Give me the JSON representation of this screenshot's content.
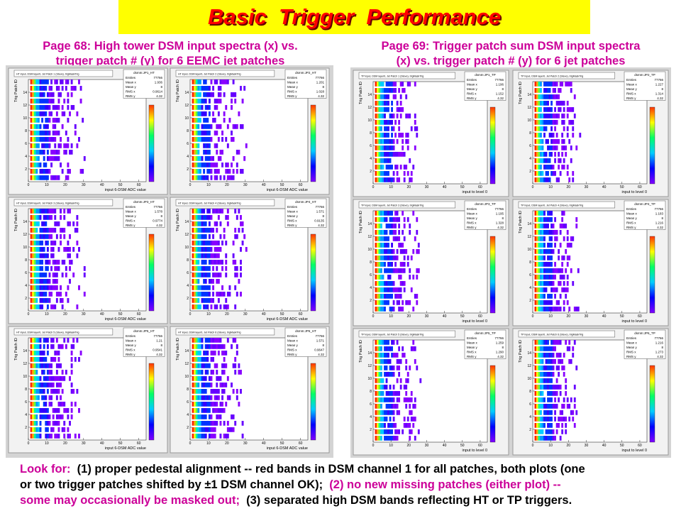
{
  "title": "Basic  Trigger  Performance",
  "left": {
    "caption": [
      "Page 68: High tower DSM input spectra (x) vs.",
      "trigger patch # (y) for 6 EEMC jet patches"
    ],
    "x_label": "input 6-DSM ADC value",
    "y_label": "Trig Patch ID",
    "x_ticks": [
      "0",
      "10",
      "20",
      "30",
      "40",
      "50",
      "60"
    ],
    "y_ticks": [
      "2",
      "4",
      "6",
      "8",
      "10",
      "12",
      "14"
    ],
    "panels": [
      {
        "title": "HT input, DSM layer0, Jet Patch 1 (Steve), trigMaskTrig",
        "stats_name": "dsmIn:JP1_HT",
        "stats": [
          [
            "Entries",
            "77766"
          ],
          [
            "Mean x",
            "1.936"
          ],
          [
            "Mean y",
            "8"
          ],
          [
            "RMS x",
            "0.9614"
          ],
          [
            "RMS y",
            "4.32"
          ]
        ]
      },
      {
        "title": "HT input, DSM layer0, Jet Patch 2 (Steve), trigMaskTrig",
        "stats_name": "dsmIn:JP2_HT",
        "stats": [
          [
            "Entries",
            "77766"
          ],
          [
            "Mean x",
            "1.201"
          ],
          [
            "Mean y",
            "8"
          ],
          [
            "RMS x",
            "1.028"
          ],
          [
            "RMS y",
            "4.32"
          ]
        ]
      },
      {
        "title": "HT input, DSM layer0, Jet Patch 3 (Steve), trigMaskTrig",
        "stats_name": "dsmIn:JP3_HT",
        "stats": [
          [
            "Entries",
            "77766"
          ],
          [
            "Mean x",
            "1.578"
          ],
          [
            "Mean y",
            "8"
          ],
          [
            "RMS x",
            "0.9774"
          ],
          [
            "RMS y",
            "4.32"
          ]
        ]
      },
      {
        "title": "HT input, DSM layer0, Jet Patch 4 (Steve), trigMaskTrig",
        "stats_name": "dsmIn:JP4_HT",
        "stats": [
          [
            "Entries",
            "77766"
          ],
          [
            "Mean x",
            "1.571"
          ],
          [
            "Mean y",
            "8"
          ],
          [
            "RMS x",
            "0.9135"
          ],
          [
            "RMS y",
            "4.32"
          ]
        ]
      },
      {
        "title": "HT input, DSM layer0, Jet Patch 5 (Steve), trigMaskTrig",
        "stats_name": "dsmIn:JP5_HT",
        "stats": [
          [
            "Entries",
            "77766"
          ],
          [
            "Mean x",
            "1.21"
          ],
          [
            "Mean y",
            "8"
          ],
          [
            "RMS x",
            "0.9541"
          ],
          [
            "RMS y",
            "4.32"
          ]
        ]
      },
      {
        "title": "HT input, DSM layer0, Jet Patch 6 (Steve), trigMaskTrig",
        "stats_name": "dsmIn:JP6_HT",
        "stats": [
          [
            "Entries",
            "77766"
          ],
          [
            "Mean x",
            "1.571"
          ],
          [
            "Mean y",
            "8"
          ],
          [
            "RMS x",
            "0.9647"
          ],
          [
            "RMS y",
            "4.32"
          ]
        ]
      }
    ]
  },
  "right": {
    "caption": [
      "Page 69: Trigger patch sum DSM input spectra",
      "(x) vs. trigger patch # (y) for 6 jet patches"
    ],
    "x_label": "input to level 0",
    "y_label": "Trig Patch ID",
    "x_ticks": [
      "0",
      "10",
      "20",
      "30",
      "40",
      "50",
      "60"
    ],
    "y_ticks": [
      "2",
      "4",
      "6",
      "8",
      "10",
      "12",
      "14"
    ],
    "panels": [
      {
        "title": "TP input, DSM layer0, Jet Patch 1 (Steve), trigMaskTrig",
        "stats_name": "dsmIn:JP1_TP",
        "stats": [
          [
            "Entries",
            "77766"
          ],
          [
            "Mean x",
            "1.196"
          ],
          [
            "Mean y",
            "8"
          ],
          [
            "RMS x",
            "1.152"
          ],
          [
            "RMS y",
            "4.32"
          ]
        ]
      },
      {
        "title": "TP input, DSM layer0, Jet Patch 2 (Steve), trigMaskTrig",
        "stats_name": "dsmIn:JP2_TP",
        "stats": [
          [
            "Entries",
            "77766"
          ],
          [
            "Mean x",
            "1.227"
          ],
          [
            "Mean y",
            "8"
          ],
          [
            "RMS x",
            "1.314"
          ],
          [
            "RMS y",
            "4.32"
          ]
        ]
      },
      {
        "title": "TP input, DSM layer0, Jet Patch 3 (Steve), trigMaskTrig",
        "stats_name": "dsmIn:JP3_TP",
        "stats": [
          [
            "Entries",
            "77766"
          ],
          [
            "Mean x",
            "1.195"
          ],
          [
            "Mean y",
            "8"
          ],
          [
            "RMS x",
            "1.328"
          ],
          [
            "RMS y",
            "4.32"
          ]
        ]
      },
      {
        "title": "TP input, DSM layer0, Jet Patch 4 (Steve), trigMaskTrig",
        "stats_name": "dsmIn:JP4_TP",
        "stats": [
          [
            "Entries",
            "77766"
          ],
          [
            "Mean x",
            "1.183"
          ],
          [
            "Mean y",
            "8"
          ],
          [
            "RMS x",
            "1.216"
          ],
          [
            "RMS y",
            "4.32"
          ]
        ]
      },
      {
        "title": "TP input, DSM layer0, Jet Patch 5 (Steve), trigMaskTrig",
        "stats_name": "dsmIn:JP5_TP",
        "stats": [
          [
            "Entries",
            "77766"
          ],
          [
            "Mean x",
            "1.259"
          ],
          [
            "Mean y",
            "8"
          ],
          [
            "RMS x",
            "1.290"
          ],
          [
            "RMS y",
            "4.32"
          ]
        ]
      },
      {
        "title": "TP input, DSM layer0, Jet Patch 6 (Steve), trigMaskTrig",
        "stats_name": "dsmIn:JP6_TP",
        "stats": [
          [
            "Entries",
            "77766"
          ],
          [
            "Mean x",
            "1.216"
          ],
          [
            "Mean y",
            "8"
          ],
          [
            "RMS x",
            "1.273"
          ],
          [
            "RMS y",
            "4.32"
          ]
        ]
      }
    ]
  },
  "footer": [
    [
      "Look for:",
      "  (1) proper pedestal alignment -- red bands in DSM channel 1 for all patches, both plots (one"
    ],
    [
      "or two trigger patches shifted by ±1 DSM channel OK);",
      "  (2) no new missing patches (either plot) --"
    ],
    [
      "some may occasionally be masked out;",
      "  (3) separated high DSM bands reflecting HT or TP triggers."
    ]
  ]
}
